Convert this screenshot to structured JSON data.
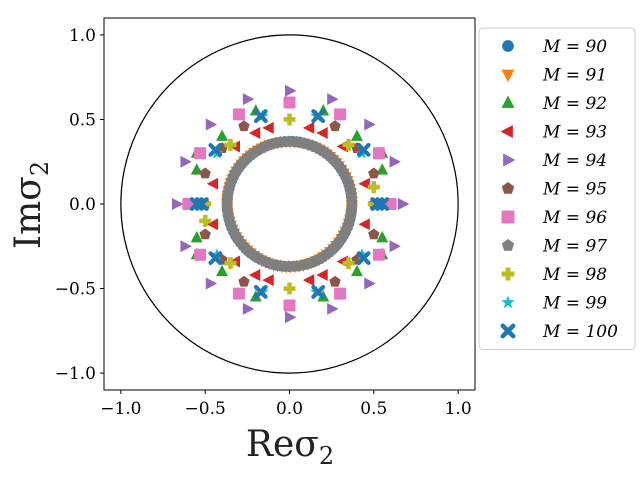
{
  "chart_data": {
    "type": "scatter",
    "xlabel": "Reσ₂",
    "xlabel_main": "Reσ",
    "xlabel_sub": "2",
    "ylabel": "Imσ₂",
    "ylabel_main": "Imσ",
    "ylabel_sub": "2",
    "xlim": [
      -1.1,
      1.1
    ],
    "ylim": [
      -1.1,
      1.1
    ],
    "x_ticks": [
      -1.0,
      -0.5,
      0.0,
      0.5,
      1.0
    ],
    "x_tick_labels": [
      "−1.0",
      "−0.5",
      "0.0",
      "0.5",
      "1.0"
    ],
    "y_ticks": [
      -1.0,
      -0.5,
      0.0,
      0.5,
      1.0
    ],
    "y_tick_labels": [
      "−1.0",
      "−0.5",
      "0.0",
      "0.5",
      "1.0"
    ],
    "unit_circle_radius": 1.0,
    "grid": false,
    "legend_position": "right-outside",
    "series": [
      {
        "name": "M = 90",
        "marker": "circle",
        "color": "#1f77b4",
        "count": 90,
        "ring_radius": 0.37
      },
      {
        "name": "M = 91",
        "marker": "triangle-down",
        "color": "#ff7f0e",
        "count": 91,
        "ring_radius": 0.37
      },
      {
        "name": "M = 92",
        "marker": "triangle-up",
        "color": "#2ca02c",
        "points": [
          [
            0.4,
            0.4
          ],
          [
            0.4,
            -0.4
          ],
          [
            -0.4,
            0.4
          ],
          [
            -0.4,
            -0.4
          ],
          [
            0.2,
            0.55
          ],
          [
            0.2,
            -0.55
          ],
          [
            -0.2,
            0.55
          ],
          [
            -0.2,
            -0.55
          ],
          [
            0.55,
            0.2
          ],
          [
            0.55,
            -0.2
          ],
          [
            -0.55,
            0.2
          ],
          [
            -0.55,
            -0.2
          ],
          [
            0.55,
            0.3
          ],
          [
            -0.55,
            0.3
          ],
          [
            0.55,
            -0.3
          ],
          [
            -0.55,
            -0.3
          ]
        ]
      },
      {
        "name": "M = 93",
        "marker": "triangle-left",
        "color": "#d62728",
        "points": [
          [
            0.12,
            0.45
          ],
          [
            -0.12,
            0.45
          ],
          [
            0.12,
            -0.45
          ],
          [
            -0.12,
            -0.45
          ],
          [
            0.32,
            0.34
          ],
          [
            -0.32,
            0.34
          ],
          [
            0.32,
            -0.34
          ],
          [
            -0.32,
            -0.34
          ],
          [
            0.45,
            0.12
          ],
          [
            -0.45,
            0.12
          ],
          [
            0.45,
            -0.12
          ],
          [
            -0.45,
            -0.12
          ],
          [
            0.2,
            0.42
          ],
          [
            -0.2,
            -0.42
          ],
          [
            0.2,
            -0.42
          ],
          [
            -0.2,
            0.42
          ]
        ]
      },
      {
        "name": "M = 94",
        "marker": "triangle-right",
        "color": "#9467bd",
        "points": [
          [
            0.0,
            0.67
          ],
          [
            0.0,
            -0.67
          ],
          [
            0.67,
            0.0
          ],
          [
            -0.67,
            0.0
          ],
          [
            0.47,
            0.47
          ],
          [
            0.47,
            -0.47
          ],
          [
            -0.47,
            0.47
          ],
          [
            -0.47,
            -0.47
          ],
          [
            0.25,
            0.62
          ],
          [
            -0.25,
            0.62
          ],
          [
            0.25,
            -0.62
          ],
          [
            -0.25,
            -0.62
          ],
          [
            0.62,
            0.25
          ],
          [
            -0.62,
            0.25
          ],
          [
            0.62,
            -0.25
          ],
          [
            -0.62,
            -0.25
          ]
        ]
      },
      {
        "name": "M = 95",
        "marker": "pentagon",
        "color": "#8c564b",
        "points": [
          [
            0.27,
            0.46
          ],
          [
            -0.27,
            0.46
          ],
          [
            0.27,
            -0.46
          ],
          [
            -0.27,
            -0.46
          ],
          [
            0.5,
            0.0
          ],
          [
            -0.5,
            0.0
          ],
          [
            0.5,
            0.18
          ],
          [
            -0.5,
            0.18
          ],
          [
            0.5,
            -0.18
          ],
          [
            -0.5,
            -0.18
          ],
          [
            0.4,
            0.33
          ],
          [
            -0.4,
            -0.33
          ],
          [
            0.4,
            -0.33
          ],
          [
            -0.4,
            0.33
          ]
        ]
      },
      {
        "name": "M = 96",
        "marker": "square",
        "color": "#e377c2",
        "points": [
          [
            0.0,
            0.6
          ],
          [
            0.0,
            -0.6
          ],
          [
            0.6,
            0.0
          ],
          [
            -0.6,
            0.0
          ],
          [
            0.3,
            0.53
          ],
          [
            -0.3,
            0.53
          ],
          [
            0.3,
            -0.53
          ],
          [
            -0.3,
            -0.53
          ],
          [
            0.53,
            0.3
          ],
          [
            -0.53,
            0.3
          ],
          [
            0.53,
            -0.3
          ],
          [
            -0.53,
            -0.3
          ]
        ]
      },
      {
        "name": "M = 97",
        "marker": "pentagon",
        "color": "#7f7f7f",
        "count": 97,
        "ring_radius": 0.37
      },
      {
        "name": "M = 98",
        "marker": "plus",
        "color": "#bcbd22",
        "points": [
          [
            0.0,
            0.5
          ],
          [
            0.0,
            -0.5
          ],
          [
            0.5,
            0.0
          ],
          [
            -0.5,
            0.0
          ],
          [
            0.35,
            0.35
          ],
          [
            -0.35,
            0.35
          ],
          [
            0.35,
            -0.35
          ],
          [
            -0.35,
            -0.35
          ],
          [
            0.5,
            0.1
          ],
          [
            -0.5,
            -0.1
          ]
        ]
      },
      {
        "name": "M = 99",
        "marker": "star",
        "color": "#17becf",
        "points": [
          [
            0.43,
            0.3
          ],
          [
            0.43,
            -0.3
          ],
          [
            -0.43,
            0.3
          ],
          [
            -0.43,
            -0.3
          ],
          [
            0.16,
            -0.52
          ],
          [
            -0.16,
            -0.52
          ],
          [
            0.16,
            0.52
          ],
          [
            -0.16,
            0.52
          ]
        ]
      },
      {
        "name": "M = 100",
        "marker": "x",
        "color": "#1f77b4",
        "points": [
          [
            0.17,
            0.52
          ],
          [
            -0.17,
            0.52
          ],
          [
            0.17,
            -0.52
          ],
          [
            -0.17,
            -0.52
          ],
          [
            0.44,
            0.32
          ],
          [
            -0.44,
            0.32
          ],
          [
            0.44,
            -0.32
          ],
          [
            -0.44,
            -0.32
          ],
          [
            0.55,
            0.0
          ],
          [
            -0.55,
            0.0
          ],
          [
            -0.52,
            0.0
          ],
          [
            0.52,
            0.0
          ]
        ]
      }
    ]
  }
}
